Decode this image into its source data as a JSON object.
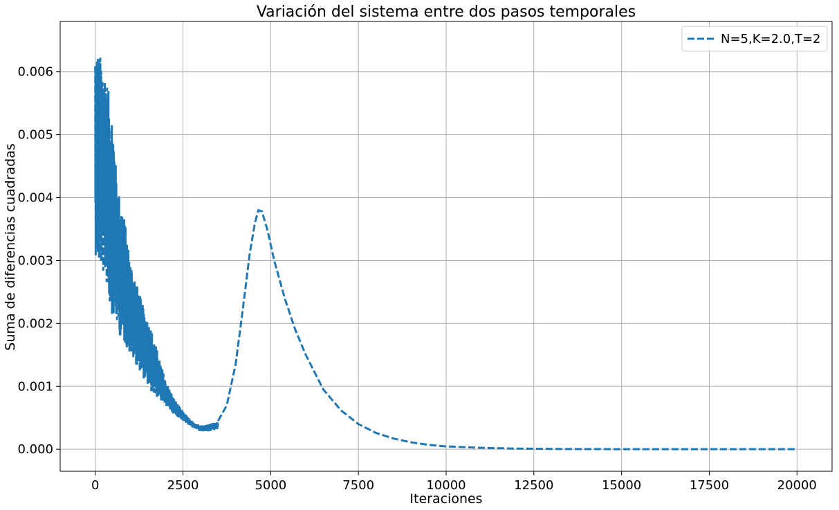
{
  "chart_data": {
    "type": "line",
    "title": "Variación del sistema entre dos pasos temporales",
    "xlabel": "Iteraciones",
    "ylabel": "Suma de diferencias cuadradas",
    "xlim": [
      -1000,
      21000
    ],
    "ylim": [
      -0.00035,
      0.0068
    ],
    "x_ticks": [
      0,
      2500,
      5000,
      7500,
      10000,
      12500,
      15000,
      17500,
      20000
    ],
    "x_tick_labels": [
      "0",
      "2500",
      "5000",
      "7500",
      "10000",
      "12500",
      "15000",
      "17500",
      "20000"
    ],
    "y_ticks": [
      0.0,
      0.001,
      0.002,
      0.003,
      0.004,
      0.005,
      0.006
    ],
    "y_tick_labels": [
      "0.000",
      "0.001",
      "0.002",
      "0.003",
      "0.004",
      "0.005",
      "0.006"
    ],
    "grid": true,
    "legend_position": "top-right",
    "series": [
      {
        "name": "N=5,K=2.0,T=2",
        "color": "#1f77b4",
        "line_style": "dashed",
        "noisy_region": {
          "x": [
            0,
            100,
            200,
            300,
            400,
            500,
            600,
            700,
            800,
            900,
            1000,
            1200,
            1400,
            1600,
            1800,
            2000,
            2250,
            2500,
            2750,
            3000,
            3250,
            3500
          ],
          "y_low": [
            0.0031,
            0.0029,
            0.0028,
            0.0027,
            0.0023,
            0.0021,
            0.002,
            0.0018,
            0.0017,
            0.0016,
            0.0015,
            0.0013,
            0.0011,
            0.0009,
            0.0008,
            0.0007,
            0.00055,
            0.00045,
            0.00035,
            0.00028,
            0.00028,
            0.00032
          ],
          "y_high": [
            0.0065,
            0.0063,
            0.0062,
            0.006,
            0.0056,
            0.0053,
            0.0044,
            0.004,
            0.0038,
            0.0034,
            0.003,
            0.0026,
            0.0022,
            0.0019,
            0.0015,
            0.0011,
            0.0008,
            0.0006,
            0.00045,
            0.00038,
            0.0004,
            0.00045
          ]
        },
        "smooth_x": [
          3500,
          3750,
          4000,
          4200,
          4400,
          4550,
          4650,
          4750,
          4900,
          5100,
          5400,
          5700,
          6000,
          6500,
          7000,
          7500,
          8000,
          8500,
          9000,
          9500,
          10000,
          11000,
          12000,
          13000,
          14000,
          15000,
          16000,
          17000,
          18000,
          19000,
          20000
        ],
        "smooth_y": [
          0.00045,
          0.0007,
          0.00135,
          0.0022,
          0.0031,
          0.0036,
          0.0038,
          0.00378,
          0.0035,
          0.003,
          0.0024,
          0.0019,
          0.0015,
          0.00095,
          0.00062,
          0.0004,
          0.00026,
          0.00017,
          0.00011,
          7e-05,
          4.5e-05,
          2.2e-05,
          1e-05,
          5e-06,
          2e-06,
          1e-06,
          0.0,
          0.0,
          0.0,
          0.0,
          0.0
        ]
      }
    ]
  }
}
